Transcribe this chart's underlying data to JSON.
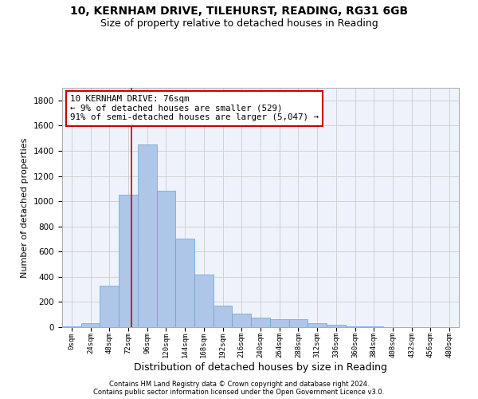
{
  "title1": "10, KERNHAM DRIVE, TILEHURST, READING, RG31 6GB",
  "title2": "Size of property relative to detached houses in Reading",
  "xlabel": "Distribution of detached houses by size in Reading",
  "ylabel": "Number of detached properties",
  "bin_labels": [
    "0sqm",
    "24sqm",
    "48sqm",
    "72sqm",
    "96sqm",
    "120sqm",
    "144sqm",
    "168sqm",
    "192sqm",
    "216sqm",
    "240sqm",
    "264sqm",
    "288sqm",
    "312sqm",
    "336sqm",
    "360sqm",
    "384sqm",
    "408sqm",
    "432sqm",
    "456sqm",
    "480sqm"
  ],
  "bar_values": [
    5,
    30,
    330,
    1050,
    1450,
    1080,
    700,
    415,
    170,
    105,
    75,
    65,
    65,
    30,
    20,
    5,
    5,
    0,
    0,
    0,
    0
  ],
  "bar_color": "#aec6e8",
  "bar_edge_color": "#6aa0d4",
  "bar_width": 1.0,
  "vline_x": 3.17,
  "vline_color": "#cc0000",
  "annotation_text": "10 KERNHAM DRIVE: 76sqm\n← 9% of detached houses are smaller (529)\n91% of semi-detached houses are larger (5,047) →",
  "annotation_box_color": "#ffffff",
  "annotation_box_edge_color": "#cc0000",
  "ylim": [
    0,
    1900
  ],
  "yticks": [
    0,
    200,
    400,
    600,
    800,
    1000,
    1200,
    1400,
    1600,
    1800
  ],
  "grid_color": "#cccccc",
  "bg_color": "#eef3fb",
  "footer_line1": "Contains HM Land Registry data © Crown copyright and database right 2024.",
  "footer_line2": "Contains public sector information licensed under the Open Government Licence v3.0.",
  "title1_fontsize": 10,
  "title2_fontsize": 9,
  "xlabel_fontsize": 9,
  "ylabel_fontsize": 8
}
